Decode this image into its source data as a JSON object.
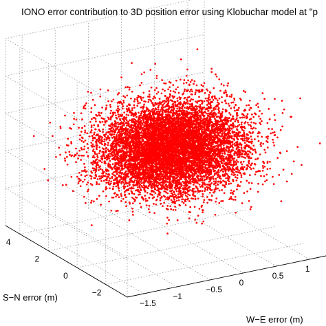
{
  "chart_data": {
    "type": "scatter",
    "projection": "3d",
    "title": "IONO error contribution to 3D position error using Klobuchar model at \"p",
    "xlabel": "W−E  error (m)",
    "ylabel": "S−N  error (m)",
    "zlabel": "",
    "x_ticks": [
      "−1.5",
      "−1",
      "−0.5",
      "0",
      "0.5",
      "1"
    ],
    "x_tick_values": [
      -1.5,
      -1,
      -0.5,
      0,
      0.5,
      1
    ],
    "y_ticks": [
      "4",
      "2",
      "0",
      "−2"
    ],
    "y_tick_values": [
      4,
      2,
      0,
      -2
    ],
    "xlim": [
      -1.75,
      1.25
    ],
    "ylim": [
      -3.5,
      5
    ],
    "zlim": [
      -6,
      6
    ],
    "grid": true,
    "marker_color": "#ff0000",
    "series": [
      {
        "distribution": "gaussian",
        "count": 9000,
        "x_mean": -0.2,
        "x_std": 0.5,
        "y_mean": 0.6,
        "y_std": 1.1,
        "z_mean": 0.0,
        "z_std": 1.3
      }
    ]
  }
}
